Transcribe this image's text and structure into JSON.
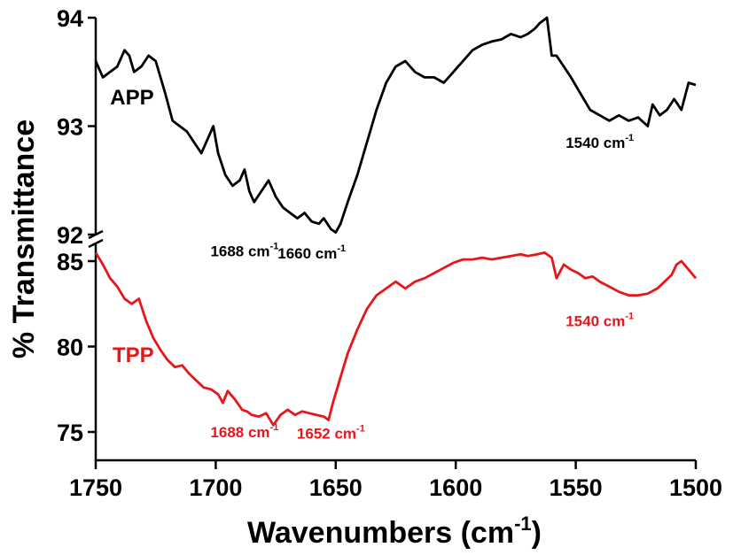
{
  "chart_data": {
    "type": "line",
    "title": "",
    "xlabel": "Wavenumbers (cm",
    "xlabel_sup": "-1",
    "xlabel_close": ")",
    "ylabel": "% Transmittance",
    "x_reversed": true,
    "xlim": [
      1750,
      1500
    ],
    "x_ticks": [
      "1750",
      "1700",
      "1650",
      "1600",
      "1550",
      "1500"
    ],
    "y_ticks_upper": [
      "94",
      "93",
      "92"
    ],
    "y_ticks_lower": [
      "85",
      "80",
      "75"
    ],
    "upper_ylim": [
      92,
      94
    ],
    "lower_ylim": [
      73,
      86
    ],
    "axis_break": true,
    "grid": false,
    "series": [
      {
        "name": "APP",
        "color": "#000000",
        "panel": "upper",
        "x": [
          1750,
          1747,
          1744,
          1741,
          1738,
          1736,
          1734,
          1731,
          1728,
          1725,
          1721,
          1718,
          1715,
          1712,
          1709,
          1706,
          1703,
          1701,
          1699,
          1696,
          1693,
          1690,
          1688,
          1686,
          1684,
          1681,
          1678,
          1675,
          1672,
          1669,
          1666,
          1663,
          1660,
          1657,
          1655,
          1652,
          1650,
          1648,
          1645,
          1641,
          1637,
          1633,
          1629,
          1625,
          1621,
          1617,
          1613,
          1609,
          1605,
          1601,
          1597,
          1593,
          1589,
          1585,
          1581,
          1577,
          1573,
          1570,
          1567,
          1565,
          1562,
          1560,
          1558,
          1555,
          1552,
          1548,
          1544,
          1540,
          1536,
          1532,
          1528,
          1524,
          1520,
          1518,
          1515,
          1512,
          1509,
          1506,
          1503,
          1500
        ],
        "values": [
          93.6,
          93.45,
          93.5,
          93.55,
          93.7,
          93.65,
          93.5,
          93.55,
          93.65,
          93.6,
          93.3,
          93.05,
          93.0,
          92.95,
          92.85,
          92.75,
          92.9,
          93.0,
          92.75,
          92.55,
          92.45,
          92.5,
          92.6,
          92.4,
          92.3,
          92.4,
          92.5,
          92.35,
          92.25,
          92.2,
          92.15,
          92.2,
          92.12,
          92.1,
          92.15,
          92.05,
          92.02,
          92.1,
          92.3,
          92.55,
          92.85,
          93.15,
          93.4,
          93.55,
          93.6,
          93.5,
          93.45,
          93.45,
          93.4,
          93.5,
          93.6,
          93.7,
          93.75,
          93.78,
          93.8,
          93.85,
          93.82,
          93.85,
          93.9,
          93.95,
          94.0,
          93.65,
          93.65,
          93.55,
          93.45,
          93.3,
          93.15,
          93.1,
          93.05,
          93.1,
          93.05,
          93.08,
          93.0,
          93.2,
          93.1,
          93.15,
          93.25,
          93.15,
          93.4,
          93.38
        ]
      },
      {
        "name": "TPP",
        "color": "#e8161b",
        "panel": "lower",
        "x": [
          1750,
          1747,
          1744,
          1741,
          1738,
          1735,
          1732,
          1729,
          1726,
          1723,
          1720,
          1717,
          1714,
          1711,
          1708,
          1705,
          1702,
          1699,
          1697,
          1695,
          1692,
          1689,
          1687,
          1685,
          1682,
          1679,
          1676,
          1673,
          1670,
          1667,
          1664,
          1661,
          1658,
          1655,
          1653,
          1651,
          1648,
          1645,
          1641,
          1637,
          1633,
          1629,
          1625,
          1621,
          1617,
          1613,
          1609,
          1605,
          1601,
          1597,
          1593,
          1589,
          1585,
          1581,
          1577,
          1573,
          1570,
          1566,
          1563,
          1560,
          1558,
          1555,
          1552,
          1549,
          1546,
          1543,
          1540,
          1536,
          1532,
          1528,
          1524,
          1520,
          1516,
          1513,
          1510,
          1508,
          1506,
          1503,
          1500
        ],
        "values": [
          85.5,
          84.8,
          84.0,
          83.5,
          82.8,
          82.5,
          82.8,
          81.5,
          80.5,
          79.8,
          79.2,
          78.8,
          78.9,
          78.4,
          78.0,
          77.6,
          77.5,
          77.2,
          76.7,
          77.4,
          76.9,
          76.3,
          76.2,
          76.0,
          75.9,
          76.1,
          75.4,
          76.0,
          76.3,
          76.0,
          76.2,
          76.1,
          76.0,
          75.9,
          75.7,
          76.8,
          78.2,
          79.6,
          81.0,
          82.2,
          83.0,
          83.4,
          83.8,
          83.4,
          83.8,
          84.0,
          84.3,
          84.6,
          84.9,
          85.1,
          85.1,
          85.2,
          85.1,
          85.2,
          85.3,
          85.4,
          85.3,
          85.4,
          85.5,
          85.2,
          84.0,
          84.8,
          84.5,
          84.3,
          84.0,
          84.1,
          83.8,
          83.5,
          83.2,
          83.0,
          83.0,
          83.1,
          83.4,
          83.8,
          84.2,
          84.8,
          85.0,
          84.5,
          84.0
        ]
      }
    ],
    "annotations": [
      {
        "series": "APP",
        "panel": "upper",
        "text": "1688 cm",
        "sup": "-1",
        "x": 1688,
        "y": 91.8
      },
      {
        "series": "APP",
        "panel": "upper",
        "text": "1660 cm",
        "sup": "-1",
        "x": 1660,
        "y": 91.78
      },
      {
        "series": "APP",
        "panel": "upper",
        "text": "1540 cm",
        "sup": "-1",
        "x": 1540,
        "y": 92.8
      },
      {
        "series": "TPP",
        "panel": "lower",
        "text": "1688 cm",
        "sup": "-1",
        "x": 1688,
        "y": 74.7
      },
      {
        "series": "TPP",
        "panel": "lower",
        "text": "1652 cm",
        "sup": "-1",
        "x": 1652,
        "y": 74.6
      },
      {
        "series": "TPP",
        "panel": "lower",
        "text": "1540 cm",
        "sup": "-1",
        "x": 1540,
        "y": 81.2
      }
    ]
  }
}
